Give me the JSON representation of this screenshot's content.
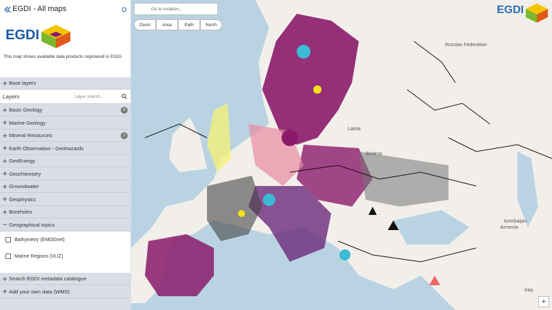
{
  "header": {
    "title": "EGDI - All maps",
    "logo": "EGDI",
    "description": "This map shows available data products registered in EGDI."
  },
  "base_layers": "Base layers",
  "layers": {
    "label": "Layers",
    "search_placeholder": "Layer search...",
    "groups": [
      {
        "name": "Basic Geology",
        "count": 8
      },
      {
        "name": "Marine Geology"
      },
      {
        "name": "Mineral Resources",
        "count": 1
      },
      {
        "name": "Earth Observation - Geohazards"
      },
      {
        "name": "GeoEnergy"
      },
      {
        "name": "Geochemistry"
      },
      {
        "name": "Groundwater"
      },
      {
        "name": "Geophysics"
      },
      {
        "name": "Boreholes"
      },
      {
        "name": "Geographical topics",
        "expanded": true,
        "items": [
          "Bathymetry (EMODnet)",
          "Marine Regions (VLIZ)"
        ]
      }
    ]
  },
  "footer_links": [
    "Search EGDI metadata catalogue",
    "Add your own data (WMS)"
  ],
  "toolbar": {
    "search_placeholder": "Go to location...",
    "tools": [
      "Zoom",
      "Area",
      "Path",
      "North"
    ]
  },
  "map": {
    "logo": "EGDI",
    "labels": [
      {
        "text": "Russian Federation"
      },
      {
        "text": "Latvia"
      },
      {
        "text": "Belarus"
      },
      {
        "text": "Azerbaijan"
      },
      {
        "text": "Armenia"
      },
      {
        "text": "Iraq"
      }
    ],
    "zoom_in": "+"
  }
}
